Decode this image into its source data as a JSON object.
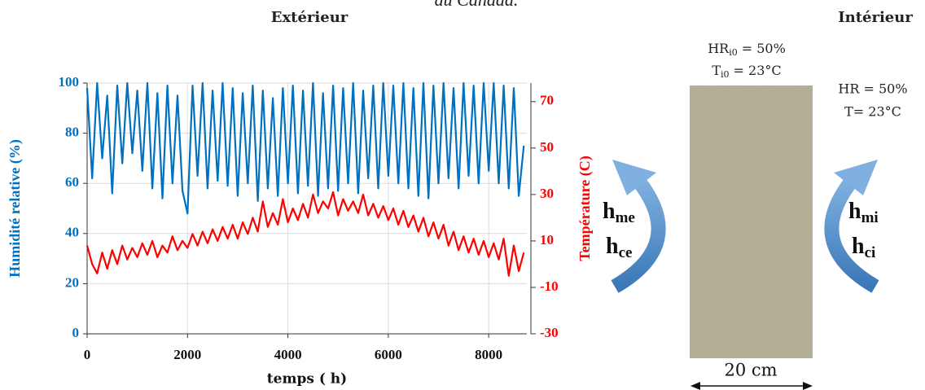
{
  "chart_data": {
    "type": "line",
    "title": "au Canada.",
    "x_label": "temps ( h)",
    "y_label": "Humidité relative (%)",
    "y2_label": "Température (C)",
    "x": [
      0,
      100,
      200,
      300,
      400,
      500,
      600,
      700,
      800,
      900,
      1000,
      1100,
      1200,
      1300,
      1400,
      1500,
      1600,
      1700,
      1800,
      1900,
      2000,
      2100,
      2200,
      2300,
      2400,
      2500,
      2600,
      2700,
      2800,
      2900,
      3000,
      3100,
      3200,
      3300,
      3400,
      3500,
      3600,
      3700,
      3800,
      3900,
      4000,
      4100,
      4200,
      4300,
      4400,
      4500,
      4600,
      4700,
      4800,
      4900,
      5000,
      5100,
      5200,
      5300,
      5400,
      5500,
      5600,
      5700,
      5800,
      5900,
      6000,
      6100,
      6200,
      6300,
      6400,
      6500,
      6600,
      6700,
      6800,
      6900,
      7000,
      7100,
      7200,
      7300,
      7400,
      7500,
      7600,
      7700,
      7800,
      7900,
      8000,
      8100,
      8200,
      8300,
      8400,
      8500,
      8600,
      8700
    ],
    "series": [
      {
        "name": "Humidité relative",
        "color": "#0070c0",
        "axis": "y",
        "values": [
          98,
          62,
          100,
          70,
          95,
          56,
          99,
          68,
          100,
          72,
          97,
          65,
          100,
          58,
          96,
          54,
          99,
          60,
          95,
          57,
          48,
          99,
          63,
          100,
          58,
          97,
          61,
          100,
          59,
          98,
          55,
          96,
          60,
          99,
          53,
          97,
          58,
          94,
          55,
          98,
          60,
          99,
          56,
          97,
          59,
          100,
          55,
          96,
          58,
          99,
          57,
          98,
          60,
          100,
          56,
          97,
          62,
          99,
          58,
          100,
          63,
          99,
          60,
          100,
          58,
          98,
          55,
          100,
          54,
          99,
          60,
          100,
          62,
          98,
          58,
          100,
          63,
          99,
          60,
          100,
          65,
          100,
          60,
          99,
          58,
          98,
          55,
          75
        ]
      },
      {
        "name": "Température",
        "color": "#ff0000",
        "axis": "y2",
        "values": [
          8,
          0,
          -4,
          5,
          -2,
          6,
          0,
          8,
          2,
          7,
          3,
          9,
          4,
          10,
          3,
          8,
          5,
          12,
          6,
          10,
          7,
          13,
          8,
          14,
          9,
          15,
          10,
          16,
          11,
          17,
          11,
          18,
          13,
          20,
          14,
          27,
          16,
          22,
          17,
          28,
          18,
          24,
          19,
          26,
          20,
          30,
          22,
          27,
          24,
          31,
          21,
          28,
          23,
          27,
          22,
          30,
          21,
          26,
          20,
          25,
          19,
          24,
          17,
          23,
          16,
          21,
          14,
          20,
          12,
          18,
          11,
          17,
          8,
          14,
          6,
          12,
          5,
          11,
          4,
          10,
          3,
          9,
          2,
          11,
          -5,
          8,
          -3,
          5
        ]
      }
    ],
    "xlim": [
      0,
      8760
    ],
    "xticks": [
      0,
      2000,
      4000,
      6000,
      8000
    ],
    "ylim": [
      0,
      100
    ],
    "yticks": [
      0,
      20,
      40,
      60,
      80,
      100
    ],
    "y2lim": [
      -30,
      78
    ],
    "y2ticks": [
      -30,
      -10,
      10,
      30,
      50,
      70
    ],
    "grid": true
  },
  "diagram": {
    "exterior_label": "Extérieur",
    "interior_label": "Intérieur",
    "initial": {
      "hr": "HR",
      "hr_sub": "i0",
      "hr_value": "= 50%",
      "t": "T",
      "t_sub": "i0",
      "t_value": "= 23°C"
    },
    "interior_conditions": [
      "HR = 50%",
      "T= 23°C"
    ],
    "exterior_coefficients": [
      {
        "base": "h",
        "sub": "me"
      },
      {
        "base": "h",
        "sub": "ce"
      }
    ],
    "interior_coefficients": [
      {
        "base": "h",
        "sub": "mi"
      },
      {
        "base": "h",
        "sub": "ci"
      }
    ],
    "thickness": "20 cm"
  }
}
